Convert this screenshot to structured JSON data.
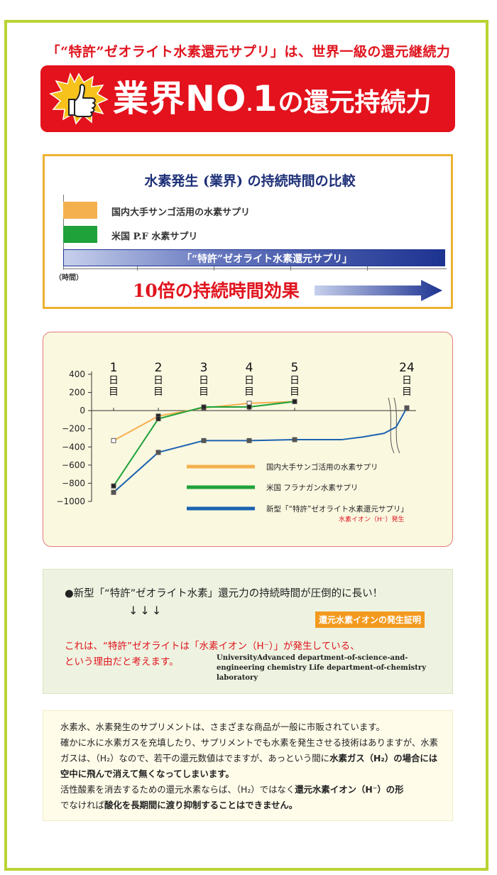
{
  "header": {
    "headline": "「“特許”ゼオライト水素還元サプリ」は、世界一級の還元継続力",
    "banner_main": "業界NO",
    "banner_dot": ".",
    "banner_one": "1",
    "banner_tail": "の還元持続力"
  },
  "comparison": {
    "title": "水素発生 (業界) の持続時間の比較",
    "bars": [
      {
        "label": "国内大手サンゴ活用の水素サプリ",
        "color": "#f4b04f",
        "relative_duration": 0.1
      },
      {
        "label": "米国 P.F 水素サプリ",
        "color": "#1fa23a",
        "relative_duration": 0.1
      },
      {
        "label": "「“特許”ゼオライト水素還元サプリ」",
        "color": "#1d3391",
        "relative_duration": 1.0
      }
    ],
    "axis_label": "（時間）",
    "effect": "10倍の持続時間効果"
  },
  "chart_data": {
    "type": "line",
    "x_labels": [
      "1日目",
      "2日目",
      "3日目",
      "4日目",
      "5日目",
      "24日目"
    ],
    "x_positions": [
      1,
      2,
      3,
      4,
      5,
      24
    ],
    "yticks": [
      400,
      200,
      0,
      -200,
      -400,
      -600,
      -800,
      -1000
    ],
    "ylim": [
      -1000,
      400
    ],
    "axis_break": "between day 5 and day 24",
    "series": [
      {
        "name": "国内大手サンゴ活用の水素サプリ",
        "color": "#f4b04f",
        "points": [
          [
            1,
            -330
          ],
          [
            2,
            -60
          ],
          [
            3,
            30
          ],
          [
            4,
            80
          ],
          [
            5,
            100
          ]
        ]
      },
      {
        "name": "米国 フラナガン水素サプリ",
        "color": "#1fa23a",
        "points": [
          [
            1,
            -830
          ],
          [
            2,
            -90
          ],
          [
            3,
            40
          ],
          [
            4,
            40
          ],
          [
            5,
            100
          ]
        ]
      },
      {
        "name": "新型「“特許”ゼオライト水素還元サプリ」",
        "color": "#1b63b0",
        "points": [
          [
            1,
            -900
          ],
          [
            2,
            -460
          ],
          [
            3,
            -330
          ],
          [
            4,
            -330
          ],
          [
            5,
            -320
          ],
          [
            24,
            30
          ]
        ]
      }
    ],
    "annotation": "水素イオン（H⁻）発生"
  },
  "claim": {
    "main": "●新型「“特許”ゼオライト水素」還元力の持続時間が圧倒的に長い！",
    "arrows": "↓↓↓",
    "badge": "還元水素イオンの発生証明",
    "red1": "これは、“特許”ゼオライトは「水素イオン（H⁻）」が発生している、",
    "red2": "という理由だと考えます。",
    "eng1": "UniversityAdvanced department-of-science-and-",
    "eng2": "engineering chemistry Life department-of-chemistry laboratory"
  },
  "explain": {
    "p1": "水素水、水素発生のサプリメントは、さまざまな商品が一般に市販されています。",
    "p2": "確かに水に水素ガスを充填したり、サプリメントでも水素を発生させる技術はありますが、水素ガスは、（H₂）なので、若干の還元数値はでますが、あっという間に",
    "p2_bold": "水素ガス（H₂）の場合には空中に飛んで消えて無くなってしまいます。",
    "p3": "活性酸素を消去するための還元水素ならば、（H₂）ではなく",
    "p3_bold": "還元水素イオン（H⁻）の形",
    "p4": "でなければ",
    "p4_bold": "酸化を長期間に渡り抑制することはできません。"
  }
}
